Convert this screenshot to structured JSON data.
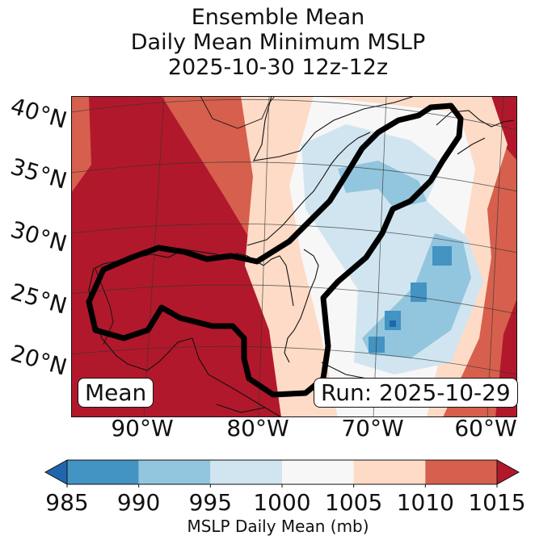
{
  "chart_data": {
    "type": "heatmap",
    "title_lines": [
      "Ensemble Mean",
      "Daily Mean Minimum MSLP",
      "2025-10-30 12z-12z"
    ],
    "map_extent": {
      "lon": [
        -97,
        -59
      ],
      "lat": [
        15,
        40
      ]
    },
    "lat_ticks": [
      "40°N",
      "35°N",
      "30°N",
      "25°N",
      "20°N"
    ],
    "lon_ticks": [
      "90°W",
      "80°W",
      "70°W",
      "60°W"
    ],
    "mean_label": "Mean",
    "run_label": "Run: 2025-10-29",
    "colorbar": {
      "label": "MSLP Daily Mean (mb)",
      "ticks": [
        "985",
        "990",
        "995",
        "1000",
        "1005",
        "1010",
        "1015"
      ],
      "bins": [
        {
          "range": [
            985,
            990
          ],
          "color": "#4393c3"
        },
        {
          "range": [
            990,
            995
          ],
          "color": "#92c5de"
        },
        {
          "range": [
            995,
            1000
          ],
          "color": "#d1e5f0"
        },
        {
          "range": [
            1000,
            1005
          ],
          "color": "#f7f7f7"
        },
        {
          "range": [
            1005,
            1010
          ],
          "color": "#fddbc7"
        },
        {
          "range": [
            1010,
            1015
          ],
          "color": "#d6604d"
        }
      ],
      "under_color": "#2166ac",
      "over_color": "#b2182b"
    }
  }
}
